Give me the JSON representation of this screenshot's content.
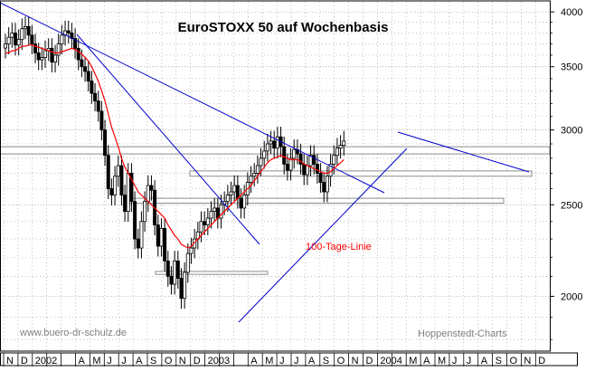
{
  "chart_data": {
    "type": "candlestick",
    "title": "EuroSTOXX 50 auf Wochenbasis",
    "y_scale": "log",
    "ylim": [
      1750,
      4100
    ],
    "y_ticks": [
      {
        "value": 4000,
        "label": "4000"
      },
      {
        "value": 3500,
        "label": "3500"
      },
      {
        "value": 3000,
        "label": "3000"
      },
      {
        "value": 2500,
        "label": "2500"
      },
      {
        "value": 2000,
        "label": "2000"
      }
    ],
    "x_ticks": [
      {
        "date": "2001-11",
        "label": "N"
      },
      {
        "date": "2001-12",
        "label": "D"
      },
      {
        "date": "2002-01",
        "label": "2002"
      },
      {
        "date": "2002-02",
        "label": ""
      },
      {
        "date": "2002-03",
        "label": ""
      },
      {
        "date": "2002-04",
        "label": "A"
      },
      {
        "date": "2002-05",
        "label": "M"
      },
      {
        "date": "2002-06",
        "label": "J"
      },
      {
        "date": "2002-07",
        "label": "J"
      },
      {
        "date": "2002-08",
        "label": "A"
      },
      {
        "date": "2002-09",
        "label": "S"
      },
      {
        "date": "2002-10",
        "label": "O"
      },
      {
        "date": "2002-11",
        "label": "N"
      },
      {
        "date": "2002-12",
        "label": "D"
      },
      {
        "date": "2003-01",
        "label": "2003"
      },
      {
        "date": "2003-02",
        "label": ""
      },
      {
        "date": "2003-03",
        "label": ""
      },
      {
        "date": "2003-04",
        "label": "A"
      },
      {
        "date": "2003-05",
        "label": "M"
      },
      {
        "date": "2003-06",
        "label": "J"
      },
      {
        "date": "2003-07",
        "label": "J"
      },
      {
        "date": "2003-08",
        "label": "A"
      },
      {
        "date": "2003-09",
        "label": "S"
      },
      {
        "date": "2003-10",
        "label": "O"
      },
      {
        "date": "2003-11",
        "label": "N"
      },
      {
        "date": "2003-12",
        "label": "D"
      },
      {
        "date": "2004-01",
        "label": "2004"
      },
      {
        "date": "2004-02",
        "label": ""
      },
      {
        "date": "2004-03",
        "label": "M"
      },
      {
        "date": "2004-04",
        "label": "A"
      },
      {
        "date": "2004-05",
        "label": "M"
      },
      {
        "date": "2004-06",
        "label": "J"
      },
      {
        "date": "2004-07",
        "label": "J"
      },
      {
        "date": "2004-08",
        "label": "A"
      },
      {
        "date": "2004-09",
        "label": "S"
      },
      {
        "date": "2004-10",
        "label": "O"
      },
      {
        "date": "2004-11",
        "label": "N"
      },
      {
        "date": "2004-12",
        "label": "D"
      }
    ],
    "weekly_closes": [
      3700,
      3760,
      3800,
      3690,
      3740,
      3840,
      3860,
      3780,
      3700,
      3620,
      3560,
      3580,
      3640,
      3660,
      3540,
      3600,
      3700,
      3780,
      3820,
      3800,
      3750,
      3660,
      3560,
      3500,
      3460,
      3380,
      3280,
      3220,
      3140,
      3000,
      2820,
      2600,
      2560,
      2680,
      2750,
      2560,
      2460,
      2700,
      2520,
      2300,
      2250,
      2400,
      2520,
      2620,
      2590,
      2380,
      2260,
      2360,
      2180,
      2100,
      2060,
      2180,
      2090,
      1990,
      2120,
      2220,
      2250,
      2300,
      2340,
      2400,
      2380,
      2420,
      2460,
      2480,
      2420,
      2500,
      2520,
      2560,
      2580,
      2620,
      2540,
      2480,
      2560,
      2640,
      2680,
      2700,
      2750,
      2800,
      2850,
      2900,
      2920,
      2870,
      2950,
      2880,
      2760,
      2720,
      2800,
      2860,
      2830,
      2760,
      2690,
      2750,
      2820,
      2760,
      2700,
      2640,
      2580,
      2680,
      2760,
      2820,
      2870,
      2890,
      2920
    ],
    "moving_average": {
      "name": "100-Tage-Linie",
      "color": "#ff0000",
      "values": [
        3620,
        3620,
        3640,
        3640,
        3660,
        3680,
        3680,
        3690,
        3690,
        3680,
        3670,
        3660,
        3650,
        3640,
        3630,
        3620,
        3620,
        3630,
        3640,
        3650,
        3660,
        3650,
        3630,
        3610,
        3580,
        3550,
        3500,
        3440,
        3380,
        3300,
        3220,
        3120,
        3020,
        2950,
        2880,
        2800,
        2740,
        2700,
        2660,
        2620,
        2580,
        2560,
        2540,
        2520,
        2500,
        2480,
        2460,
        2440,
        2420,
        2380,
        2350,
        2320,
        2300,
        2270,
        2260,
        2250,
        2260,
        2280,
        2300,
        2320,
        2340,
        2360,
        2380,
        2400,
        2420,
        2440,
        2460,
        2480,
        2500,
        2520,
        2540,
        2560,
        2580,
        2600,
        2620,
        2650,
        2680,
        2710,
        2740,
        2770,
        2790,
        2800,
        2810,
        2820,
        2810,
        2800,
        2790,
        2790,
        2790,
        2780,
        2760,
        2750,
        2740,
        2730,
        2720,
        2710,
        2700,
        2700,
        2710,
        2730,
        2750,
        2770,
        2790
      ]
    },
    "annotations": [
      {
        "text": "100-Tage-Linie",
        "color": "#ff0000"
      },
      {
        "text": "www.buero-dr-schulz.de",
        "color": "#808080"
      },
      {
        "text": "Hoppenstedt-Charts",
        "color": "#808080"
      }
    ],
    "colors": {
      "candle": "#000000",
      "trendline": "#0000cc",
      "support": "#808080",
      "grid": "#999999"
    },
    "grid": true
  }
}
